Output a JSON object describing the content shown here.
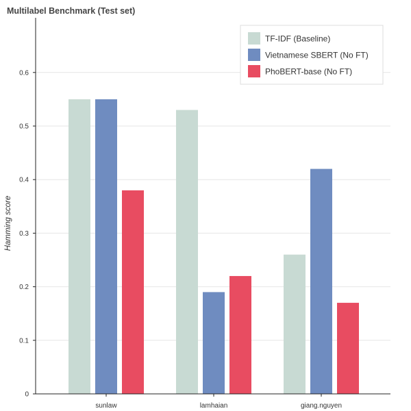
{
  "chart_data": {
    "type": "bar",
    "title": "Multilabel Benchmark (Test set)",
    "xlabel": "",
    "ylabel": "Hamming score",
    "categories": [
      "sunlaw",
      "lamhaian",
      "giang.nguyen"
    ],
    "series": [
      {
        "name": "TF-IDF (Baseline)",
        "color": "#c8dad3",
        "values": [
          0.55,
          0.53,
          0.26
        ]
      },
      {
        "name": "Vietnamese SBERT (No FT)",
        "color": "#6f8cc0",
        "values": [
          0.55,
          0.19,
          0.42
        ]
      },
      {
        "name": "PhoBERT-base (No FT)",
        "color": "#e84c61",
        "values": [
          0.38,
          0.22,
          0.17
        ]
      }
    ],
    "ylim": [
      0,
      0.7
    ],
    "yticks": [
      "0",
      "0.1",
      "0.2",
      "0.3",
      "0.4",
      "0.5",
      "0.6"
    ],
    "grid": true,
    "legend_position": "top-right"
  }
}
